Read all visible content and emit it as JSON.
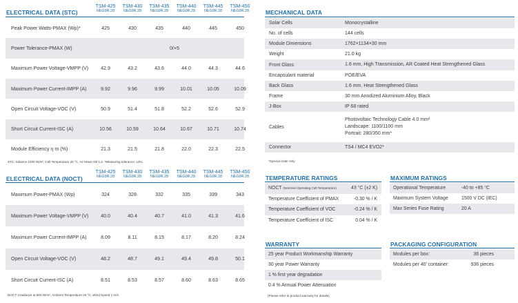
{
  "stc": {
    "title": "ELECTRICAL DATA (STC)",
    "models": [
      {
        "name": "TSM-425",
        "sub": "NEG9R.28"
      },
      {
        "name": "TSM-430",
        "sub": "NEG9R.28"
      },
      {
        "name": "TSM-435",
        "sub": "NEG9R.28"
      },
      {
        "name": "TSM-440",
        "sub": "NEG9R.28"
      },
      {
        "name": "TSM-445",
        "sub": "NEG9R.28"
      },
      {
        "name": "TSM-450",
        "sub": "NEG9R.28"
      }
    ],
    "rows": [
      {
        "label": "Peak Power Watts-PMAX (Wp)*",
        "values": [
          "425",
          "430",
          "435",
          "440",
          "445",
          "450"
        ]
      },
      {
        "label": "Power Tolerance-PMAX (W)",
        "span": "0/+5"
      },
      {
        "label": "Maximum Power Voltage-VMPP (V)",
        "values": [
          "42.9",
          "43.2",
          "43.6",
          "44.0",
          "44.3",
          "44.6"
        ]
      },
      {
        "label": "Maximum Power Current-IMPP (A)",
        "values": [
          "9.92",
          "9.96",
          "9.99",
          "10.01",
          "10.05",
          "10.09"
        ]
      },
      {
        "label": "Open Circuit Voltage-VOC (V)",
        "values": [
          "50.9",
          "51.4",
          "51.8",
          "52.2",
          "52.6",
          "52.9"
        ]
      },
      {
        "label": "Short Circuit Current-ISC (A)",
        "values": [
          "10.56",
          "10.59",
          "10.64",
          "10.67",
          "10.71",
          "10.74"
        ]
      },
      {
        "label": "Module Efficiency η m (%)",
        "values": [
          "21.3",
          "21.5",
          "21.8",
          "22.0",
          "22.3",
          "22.5"
        ]
      }
    ],
    "note": "STC: Irdiance 1000 W/m², Cell Temperature 25 °C, Air Mass AM 1.5. *Measuring tolerance: ±3%."
  },
  "noct": {
    "title": "ELECTRICAL DATA (NOCT)",
    "models": [
      {
        "name": "TSM-425",
        "sub": "NEG9R.28"
      },
      {
        "name": "TSM-430",
        "sub": "NEG9R.28"
      },
      {
        "name": "TSM-435",
        "sub": "NEG9R.28"
      },
      {
        "name": "TSM-440",
        "sub": "NEG9R.28"
      },
      {
        "name": "TSM-445",
        "sub": "NEG9R.28"
      },
      {
        "name": "TSM-450",
        "sub": "NEG9R.28"
      }
    ],
    "rows": [
      {
        "label": "Maximum Power-PMAX (Wp)",
        "values": [
          "324",
          "328",
          "332",
          "335",
          "339",
          "343"
        ]
      },
      {
        "label": "Maximum Power Voltage-VMPP (V)",
        "values": [
          "40.0",
          "40.4",
          "40.7",
          "41.0",
          "41.3",
          "41.6"
        ]
      },
      {
        "label": "Maximum Power Current-IMPP (A)",
        "values": [
          "8.09",
          "8.11",
          "8.15",
          "8.17",
          "8.20",
          "8.24"
        ]
      },
      {
        "label": "Open Circuit Voltage-VOC (V)",
        "values": [
          "48.2",
          "48.7",
          "49.1",
          "49.4",
          "49.8",
          "50.1"
        ]
      },
      {
        "label": "Short Circuit Current-ISC (A)",
        "values": [
          "8.51",
          "8.53",
          "8.57",
          "8.60",
          "8.63",
          "8.65"
        ]
      }
    ],
    "note": "NOCT: Irradiance at 800 W/m², Ambient Temperature 20 °C, Wind Speed 1 m/s."
  },
  "mechanical": {
    "title": "MECHANICAL DATA",
    "rows": [
      {
        "label": "Solar Cells",
        "value": "Monocrystalline"
      },
      {
        "label": "No. of cells",
        "value": "144 cells"
      },
      {
        "label": "Module Dimensions",
        "value": "1762×1134×30 mm"
      },
      {
        "label": "Weight",
        "value": "21.0 kg"
      },
      {
        "label": "Front Glass",
        "value": "1.6 mm, High Transmission, AR Coated Heat Strengthened Glass"
      },
      {
        "label": "Encapsulant material",
        "value": "POE/EVA"
      },
      {
        "label": "Back Glass",
        "value": "1.6 mm, Heat Strengthened Glass"
      },
      {
        "label": "Frame",
        "value": "30 mm Anodized  Aluminium Alloy, Black"
      },
      {
        "label": "J-Box",
        "value": "IP 68 rated"
      },
      {
        "label": "Cables",
        "lines": [
          "Photovoltaic Technology Cable 4.0 mm²",
          "Landscape: 1100/1100 mm",
          "Portrait: 280/350 mm*"
        ]
      },
      {
        "label": "Connector",
        "value": "TS4 / MC4 EVO2*"
      }
    ],
    "note": "*Special order only"
  },
  "temperature": {
    "title": "TEMPERATURE RATINGS",
    "rows": [
      {
        "label": "NOCT",
        "label_small": "(Nominal Operating Cell Temperature)",
        "value": "43 °C (±2 K)"
      },
      {
        "label": "Temperature Coefficient of PMAX",
        "value": "-0.30 % / K"
      },
      {
        "label": "Temperature Coefficient of VOC",
        "value": "-0.24 % / K"
      },
      {
        "label": "Temperature Coefficient of ISC",
        "value": "0.04 % / K"
      }
    ]
  },
  "maximum": {
    "title": "MAXIMUM RATINGS",
    "rows": [
      {
        "label": "Operational Temperature",
        "value": "-40 to +85 °C"
      },
      {
        "label": "Maximum System Voltage",
        "value": "1500 V DC (IEC)"
      },
      {
        "label": "Max Series Fuse Rating",
        "value": "20 A"
      }
    ]
  },
  "warranty": {
    "title": "WARRANTY",
    "rows": [
      "25 year Product Workmanship Warranty",
      "30 year Power Warranty",
      "1 % first year degradation",
      "0.4 % Annual Power Attenuation"
    ],
    "note": "(Please refer to product warranty for details)"
  },
  "packaging": {
    "title": "PACKAGING CONFIGURATION",
    "rows": [
      {
        "label": "Modules per box:",
        "value": "36 pieces"
      },
      {
        "label": "Modules per 40’ container:",
        "value": "936 pieces"
      }
    ]
  },
  "colors": {
    "accent": "#1f6fa8",
    "shade": "#e6e8eb"
  }
}
